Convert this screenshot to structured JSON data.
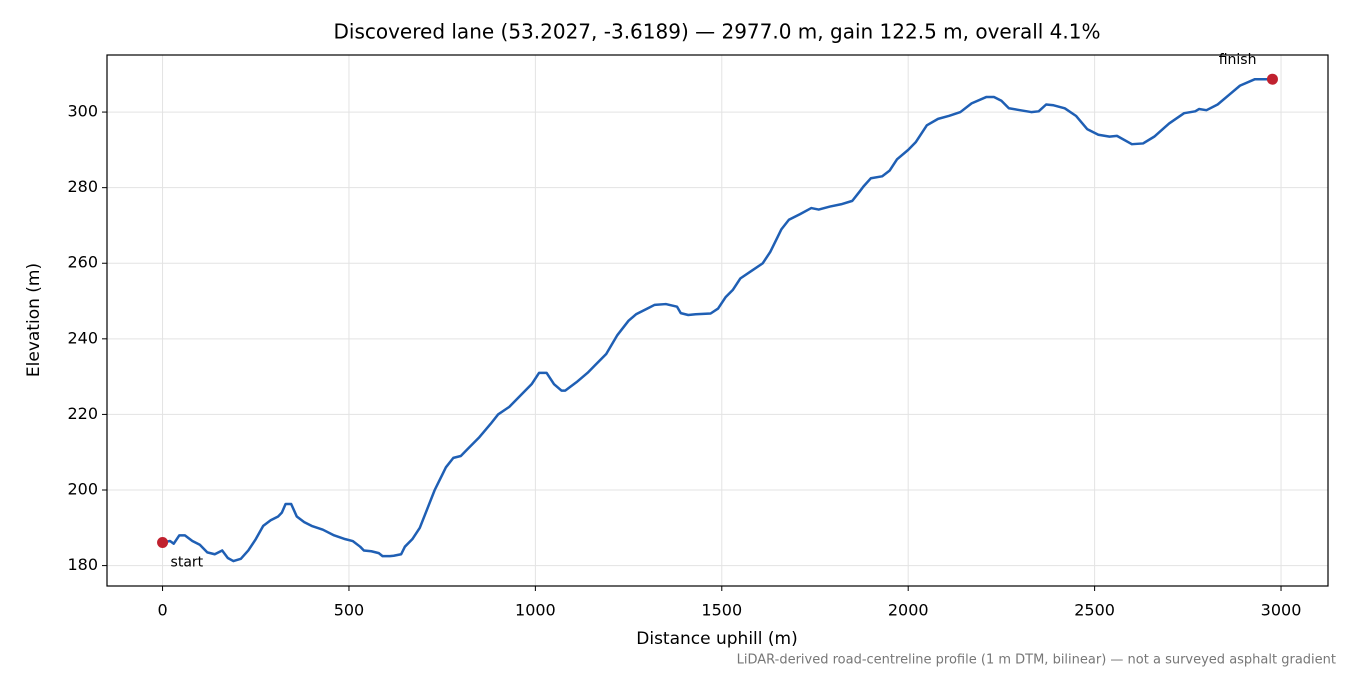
{
  "chart_data": {
    "type": "line",
    "title": "Discovered lane (53.2027, -3.6189) — 2977.0 m, gain 122.5 m, overall 4.1%",
    "xlabel": "Distance uphill (m)",
    "ylabel": "Elevation (m)",
    "footnote": "LiDAR-derived road-centreline profile (1 m DTM, bilinear) — not a surveyed asphalt gradient",
    "color": "#1f5fb4",
    "marker_color": "#c0212f",
    "grid": true,
    "xlim": [
      -149,
      3126
    ],
    "ylim": [
      174.6,
      315.1
    ],
    "xticks": [
      0,
      500,
      1000,
      1500,
      2000,
      2500,
      3000
    ],
    "yticks": [
      180,
      200,
      220,
      240,
      260,
      280,
      300
    ],
    "x": [
      0,
      20,
      30,
      45,
      60,
      80,
      100,
      120,
      140,
      150,
      160,
      175,
      190,
      210,
      230,
      250,
      270,
      290,
      310,
      320,
      330,
      345,
      360,
      380,
      400,
      430,
      460,
      490,
      510,
      530,
      540,
      560,
      580,
      590,
      610,
      620,
      640,
      650,
      670,
      690,
      710,
      730,
      740,
      750,
      760,
      780,
      800,
      820,
      850,
      880,
      900,
      930,
      960,
      990,
      1010,
      1030,
      1050,
      1070,
      1080,
      1110,
      1140,
      1160,
      1190,
      1220,
      1250,
      1270,
      1300,
      1320,
      1350,
      1380,
      1390,
      1410,
      1430,
      1470,
      1490,
      1510,
      1530,
      1550,
      1580,
      1610,
      1630,
      1650,
      1660,
      1680,
      1710,
      1740,
      1760,
      1790,
      1820,
      1850,
      1870,
      1880,
      1900,
      1930,
      1950,
      1970,
      2000,
      2020,
      2050,
      2080,
      2110,
      2140,
      2170,
      2210,
      2230,
      2250,
      2270,
      2300,
      2330,
      2350,
      2370,
      2390,
      2420,
      2450,
      2480,
      2510,
      2540,
      2560,
      2600,
      2630,
      2660,
      2700,
      2740,
      2770,
      2780,
      2800,
      2830,
      2860,
      2890,
      2930,
      2960,
      2977
    ],
    "values": [
      186.1,
      186.5,
      185.8,
      188,
      188,
      186.5,
      185.5,
      183.5,
      183,
      183.5,
      184,
      182,
      181.2,
      181.8,
      184,
      187,
      190.5,
      192,
      193,
      194,
      196.3,
      196.3,
      193,
      191.5,
      190.5,
      189.5,
      188,
      187,
      186.5,
      185,
      184,
      183.8,
      183.3,
      182.5,
      182.5,
      182.6,
      183,
      185,
      187,
      190,
      195,
      200,
      202,
      204,
      206,
      208.5,
      209,
      211,
      214,
      217.5,
      220,
      222,
      225,
      228,
      231,
      231,
      228,
      226.3,
      226.3,
      228.5,
      231,
      233,
      236,
      241,
      244.8,
      246.5,
      248,
      249,
      249.2,
      248.5,
      246.8,
      246.3,
      246.5,
      246.7,
      248,
      251,
      253,
      256,
      258,
      260,
      263,
      267,
      269,
      271.5,
      273,
      274.6,
      274.2,
      275,
      275.6,
      276.5,
      279,
      280.3,
      282.5,
      283,
      284.5,
      287.5,
      290,
      292,
      296.5,
      298.2,
      299,
      300,
      302.3,
      304,
      304,
      303,
      301,
      300.5,
      300,
      300.2,
      302,
      301.8,
      301,
      299,
      295.5,
      294,
      293.5,
      293.7,
      291.5,
      291.7,
      293.5,
      297,
      299.7,
      300.2,
      300.8,
      300.5,
      302,
      304.5,
      307,
      308.7,
      308.7,
      308.7
    ],
    "annotations": [
      {
        "text": "start",
        "x": 0,
        "y": 186.1
      },
      {
        "text": "finish",
        "x": 2977,
        "y": 308.7
      }
    ]
  }
}
